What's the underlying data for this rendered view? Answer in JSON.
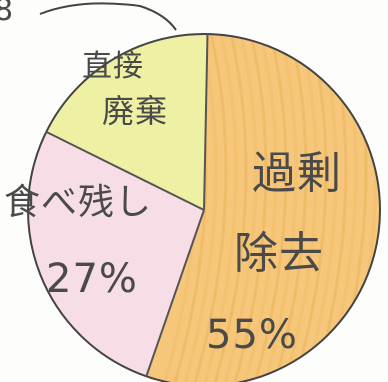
{
  "chart_data": {
    "type": "pie",
    "title": "",
    "slices": [
      {
        "label_lines": [
          "過剰",
          "除去"
        ],
        "value": 55,
        "value_label": "55%",
        "color": "#f6c77a"
      },
      {
        "label_lines": [
          "食べ残し"
        ],
        "value": 27,
        "value_label": "27%",
        "color": "#f6dde6"
      },
      {
        "label_lines": [
          "直接",
          "廃棄"
        ],
        "value": 18,
        "value_label": "",
        "color": "#eef0a4"
      }
    ],
    "top_partial_text": "8"
  }
}
